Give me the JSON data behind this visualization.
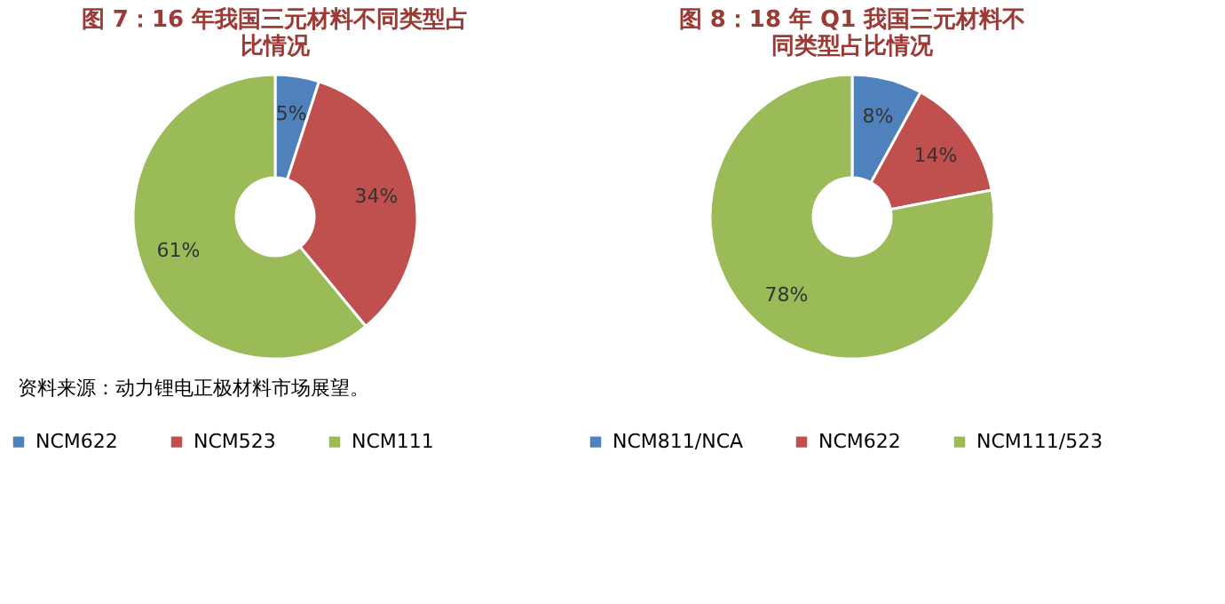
{
  "chart_data": [
    {
      "type": "donut",
      "title": "图 7：16 年我国三元材料不同类型占比情况",
      "categories": [
        "NCM622",
        "NCM523",
        "NCM111"
      ],
      "values": [
        5,
        34,
        61
      ],
      "colors": [
        "#4f81bd",
        "#c0504d",
        "#9bbb59"
      ],
      "value_labels": [
        "5%",
        "34%",
        "61%"
      ],
      "legend": "bottom",
      "annotations": [
        "资料来源：动力锂电正极材料市场展望。"
      ]
    },
    {
      "type": "donut",
      "title": "图 8：18 年 Q1 我国三元材料不同类型占比情况",
      "categories": [
        "NCM811/NCA",
        "NCM622",
        "NCM111/523"
      ],
      "values": [
        8,
        14,
        78
      ],
      "colors": [
        "#4f81bd",
        "#c0504d",
        "#9bbb59"
      ],
      "value_labels": [
        "8%",
        "14%",
        "78%"
      ],
      "legend": "bottom"
    }
  ]
}
